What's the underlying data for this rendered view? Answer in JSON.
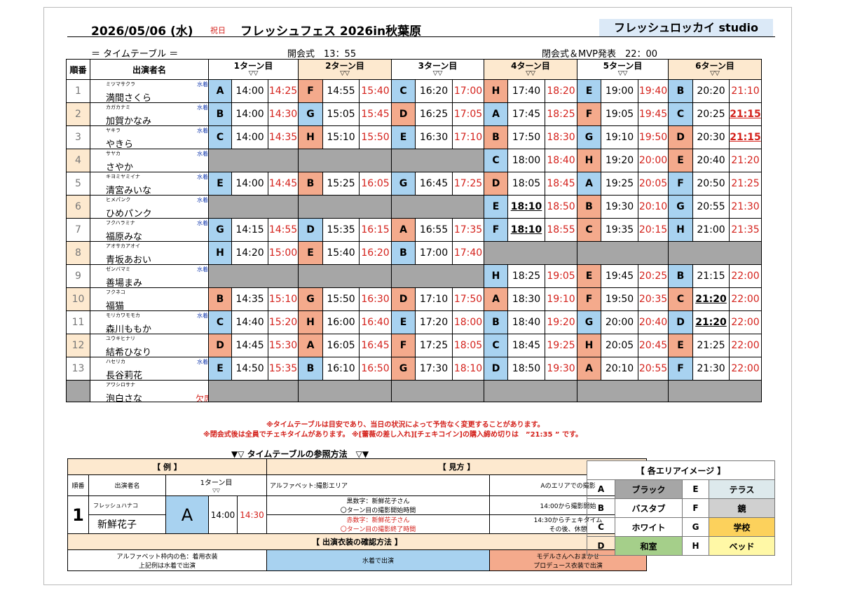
{
  "header": {
    "date": "2026/05/06 (水)",
    "holiday": "祝日",
    "event": "フレッシュフェス 2026in秋葉原",
    "studio": "フレッシュロッカイ studio",
    "timetable": "＝ タイムテーブル ＝",
    "opening": "開会式　13：55",
    "closing": "閉会式＆MVP発表　22：00"
  },
  "columns": {
    "order": "順番",
    "performer": "出演者名",
    "turns": [
      "1ターン目",
      "2ターン目",
      "3ターン目",
      "4ターン目",
      "5ターン目",
      "6ターン目"
    ],
    "triangle": "▽▽"
  },
  "performers": [
    {
      "no": "1",
      "kana": "ミツマサクラ",
      "name": "満間さくら",
      "swim": "水着あり",
      "slots": [
        [
          "A",
          "b",
          "14:00",
          "14:25",
          ""
        ],
        [
          "F",
          "s",
          "14:55",
          "15:40",
          ""
        ],
        [
          "C",
          "b",
          "16:20",
          "17:00",
          ""
        ],
        [
          "H",
          "s",
          "17:40",
          "18:20",
          ""
        ],
        [
          "E",
          "b",
          "19:00",
          "19:40",
          ""
        ],
        [
          "B",
          "b",
          "20:20",
          "21:10",
          ""
        ]
      ]
    },
    {
      "no": "2",
      "kana": "カガカナミ",
      "name": "加賀かなみ",
      "swim": "水着あり",
      "slots": [
        [
          "B",
          "b",
          "14:00",
          "14:30",
          ""
        ],
        [
          "G",
          "b",
          "15:05",
          "15:45",
          ""
        ],
        [
          "D",
          "s",
          "16:25",
          "17:05",
          ""
        ],
        [
          "A",
          "b",
          "17:45",
          "18:25",
          ""
        ],
        [
          "F",
          "s",
          "19:05",
          "19:45",
          ""
        ],
        [
          "C",
          "b",
          "20:25",
          "21:15",
          "e"
        ]
      ]
    },
    {
      "no": "3",
      "kana": "ヤキラ",
      "name": "やきら",
      "swim": "水着あり",
      "slots": [
        [
          "C",
          "b",
          "14:00",
          "14:35",
          ""
        ],
        [
          "H",
          "s",
          "15:10",
          "15:50",
          ""
        ],
        [
          "E",
          "b",
          "16:30",
          "17:10",
          ""
        ],
        [
          "B",
          "s",
          "17:50",
          "18:30",
          ""
        ],
        [
          "G",
          "b",
          "19:10",
          "19:50",
          ""
        ],
        [
          "D",
          "s",
          "20:30",
          "21:15",
          "e"
        ]
      ]
    },
    {
      "no": "4",
      "kana": "サヤカ",
      "name": "さやか",
      "swim": "水着あり",
      "slots": [
        null,
        null,
        null,
        [
          "C",
          "b",
          "18:00",
          "18:40",
          ""
        ],
        [
          "H",
          "s",
          "19:20",
          "20:00",
          ""
        ],
        [
          "E",
          "s",
          "20:40",
          "21:20",
          ""
        ]
      ]
    },
    {
      "no": "5",
      "kana": "キヨミヤミイナ",
      "name": "清宮みいな",
      "swim": "水着あり",
      "slots": [
        [
          "E",
          "b",
          "14:00",
          "14:45",
          ""
        ],
        [
          "B",
          "s",
          "15:25",
          "16:05",
          ""
        ],
        [
          "G",
          "b",
          "16:45",
          "17:25",
          ""
        ],
        [
          "D",
          "s",
          "18:05",
          "18:45",
          ""
        ],
        [
          "A",
          "b",
          "19:25",
          "20:05",
          ""
        ],
        [
          "F",
          "b",
          "20:50",
          "21:25",
          ""
        ]
      ]
    },
    {
      "no": "6",
      "kana": "ヒメパンク",
      "name": "ひめパンク",
      "swim": "水着あり",
      "slots": [
        null,
        null,
        null,
        [
          "E",
          "b",
          "18:10",
          "18:50",
          "s"
        ],
        [
          "B",
          "s",
          "19:30",
          "20:10",
          ""
        ],
        [
          "G",
          "b",
          "20:55",
          "21:30",
          ""
        ]
      ]
    },
    {
      "no": "7",
      "kana": "フクハラミナ",
      "name": "福原みな",
      "swim": "水着あり",
      "slots": [
        [
          "G",
          "b",
          "14:15",
          "14:55",
          ""
        ],
        [
          "D",
          "b",
          "15:35",
          "16:15",
          ""
        ],
        [
          "A",
          "s",
          "16:55",
          "17:35",
          ""
        ],
        [
          "F",
          "b",
          "18:10",
          "18:55",
          "s"
        ],
        [
          "C",
          "s",
          "19:35",
          "20:15",
          ""
        ],
        [
          "H",
          "b",
          "21:00",
          "21:35",
          ""
        ]
      ]
    },
    {
      "no": "8",
      "kana": "アオサカアオイ",
      "name": "青坂あおい",
      "swim": "",
      "slots": [
        [
          "H",
          "b",
          "14:20",
          "15:00",
          ""
        ],
        [
          "E",
          "s",
          "15:40",
          "16:20",
          ""
        ],
        [
          "B",
          "b",
          "17:00",
          "17:40",
          ""
        ],
        null,
        null,
        null
      ]
    },
    {
      "no": "9",
      "kana": "ゼンバマミ",
      "name": "善場まみ",
      "swim": "水着あり",
      "slots": [
        null,
        null,
        null,
        [
          "H",
          "b",
          "18:25",
          "19:05",
          ""
        ],
        [
          "E",
          "s",
          "19:45",
          "20:25",
          ""
        ],
        [
          "B",
          "b",
          "21:15",
          "22:00",
          ""
        ]
      ]
    },
    {
      "no": "10",
      "kana": "フクネコ",
      "name": "福猫",
      "swim": "",
      "slots": [
        [
          "B",
          "s",
          "14:35",
          "15:10",
          ""
        ],
        [
          "G",
          "s",
          "15:50",
          "16:30",
          ""
        ],
        [
          "D",
          "s",
          "17:10",
          "17:50",
          ""
        ],
        [
          "A",
          "s",
          "18:30",
          "19:10",
          ""
        ],
        [
          "F",
          "s",
          "19:50",
          "20:35",
          ""
        ],
        [
          "C",
          "s",
          "21:20",
          "22:00",
          "s"
        ]
      ]
    },
    {
      "no": "11",
      "kana": "モリカワモモカ",
      "name": "森川ももか",
      "swim": "水着あり",
      "slots": [
        [
          "C",
          "b",
          "14:40",
          "15:20",
          ""
        ],
        [
          "H",
          "s",
          "16:00",
          "16:40",
          ""
        ],
        [
          "E",
          "b",
          "17:20",
          "18:00",
          ""
        ],
        [
          "B",
          "b",
          "18:40",
          "19:20",
          ""
        ],
        [
          "G",
          "b",
          "20:00",
          "20:40",
          ""
        ],
        [
          "D",
          "b",
          "21:20",
          "22:00",
          "s"
        ]
      ]
    },
    {
      "no": "12",
      "kana": "ユウキヒナリ",
      "name": "結希ひなり",
      "swim": "",
      "slots": [
        [
          "D",
          "s",
          "14:45",
          "15:30",
          ""
        ],
        [
          "A",
          "s",
          "16:05",
          "16:45",
          ""
        ],
        [
          "F",
          "s",
          "17:25",
          "18:05",
          ""
        ],
        [
          "C",
          "b",
          "18:45",
          "19:25",
          ""
        ],
        [
          "H",
          "s",
          "20:05",
          "20:45",
          ""
        ],
        [
          "E",
          "s",
          "21:25",
          "22:00",
          ""
        ]
      ]
    },
    {
      "no": "13",
      "kana": "ハセリカ",
      "name": "長谷莉花",
      "swim": "水着あり",
      "slots": [
        [
          "E",
          "b",
          "14:50",
          "15:35",
          ""
        ],
        [
          "B",
          "b",
          "16:10",
          "16:50",
          ""
        ],
        [
          "G",
          "s",
          "17:30",
          "18:10",
          ""
        ],
        [
          "D",
          "b",
          "18:50",
          "19:30",
          ""
        ],
        [
          "A",
          "s",
          "20:10",
          "20:55",
          ""
        ],
        [
          "F",
          "b",
          "21:30",
          "22:00",
          ""
        ]
      ]
    },
    {
      "no": "",
      "kana": "アワシロサナ",
      "name": "泡白さな",
      "swim": "",
      "absent": "欠席",
      "slots": [
        null,
        null,
        null,
        null,
        null,
        null
      ]
    }
  ],
  "notes": {
    "line1": "※タイムテーブルは目安であり、当日の状況によって予告なく変更することがあります。",
    "line2": "※閉会式後は全員でチェキタイムがあります。 ※[蕾薇の差し入れ][チェキコイン]の購入締め切りは　”21:35 ” です。"
  },
  "reference": {
    "title": "▼▽ タイムテーブルの参照方法　▽▼",
    "example_header": "【 例 】",
    "view_header": "【 見方 】",
    "order": "順番",
    "performer": "出演者名",
    "turn": "1ターン目",
    "tri": "▽▽",
    "no": "1",
    "kana": "フレッシュハナコ",
    "name": "新鮮花子",
    "letter": "A",
    "start": "14:00",
    "end": "14:30",
    "v1a": "アルファベット:撮影エリア",
    "v1b": "Aのエリアでの撮影",
    "v2a1": "黒数字：新鮮花子さん",
    "v2a2": "〇ターン目の撮影開始時間",
    "v2b": "14:00から撮影開始",
    "v3a1": "赤数字：新鮮花子さん",
    "v3a2": "〇ターン目の撮影終了時間",
    "v3b1": "14:30からチェキタイム",
    "v3b2": "その後、休憩",
    "costume_header": "【 出演衣装の確認方法 】",
    "c1a": "アルファベット枠内の色：着用衣装",
    "c1b": "上記例は水着で出演",
    "c2": "水着で出演",
    "c3a": "モデルさんへおまかせ",
    "c3b": "プロデュース衣装で出演"
  },
  "areas": {
    "title": "【 各エリアイメージ 】",
    "items": [
      {
        "k": "A",
        "v": "ブラック",
        "c": "#a6a6a6"
      },
      {
        "k": "E",
        "v": "テラス",
        "c": "#dde9ec"
      },
      {
        "k": "B",
        "v": "バスタブ",
        "c": "#ffffff"
      },
      {
        "k": "F",
        "v": "鏡",
        "c": "#d0d0d0"
      },
      {
        "k": "C",
        "v": "ホワイト",
        "c": "#ffffff"
      },
      {
        "k": "G",
        "v": "学校",
        "c": "#fcd15c"
      },
      {
        "k": "D",
        "v": "和室",
        "c": "#a5cf8a"
      },
      {
        "k": "H",
        "v": "ベッド",
        "c": "#fff8a6"
      }
    ]
  }
}
